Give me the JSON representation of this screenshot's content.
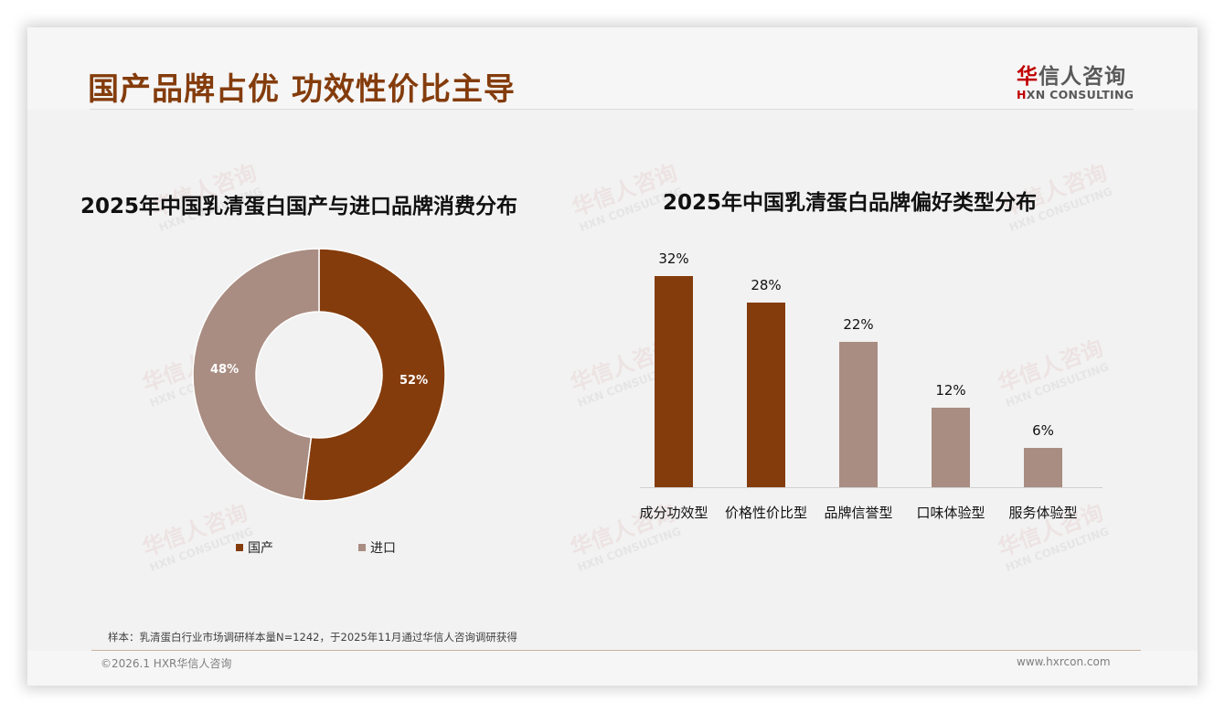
{
  "header": {
    "title": "国产品牌占优 功效性价比主导",
    "logo_cn_accent": "华",
    "logo_cn_rest": "信人咨询",
    "logo_en_accent": "H",
    "logo_en_rest": "XN CONSULTING"
  },
  "watermark": {
    "cn": "华信人咨询",
    "en": "HXN CONSULTING"
  },
  "colors": {
    "domestic": "#843c0c",
    "import": "#a98d82",
    "title": "#843c0c",
    "background": "#f2f2f2"
  },
  "donut_chart": {
    "title": "2025年中国乳清蛋白国产与进口品牌消费分布",
    "labels": [
      "52%",
      "48%"
    ],
    "legend": [
      "国产",
      "进口"
    ]
  },
  "bar_chart": {
    "title": "2025年中国乳清蛋白品牌偏好类型分布",
    "value_labels": [
      "32%",
      "28%",
      "22%",
      "12%",
      "6%"
    ],
    "categories": [
      "成分功效型",
      "价格性价比型",
      "品牌信誉型",
      "口味体验型",
      "服务体验型"
    ]
  },
  "chart_data": [
    {
      "type": "pie",
      "title": "2025年中国乳清蛋白国产与进口品牌消费分布",
      "categories": [
        "国产",
        "进口"
      ],
      "values": [
        52,
        48
      ],
      "unit": "%",
      "hole": 0.5,
      "colors": [
        "#843c0c",
        "#a98d82"
      ],
      "legend_position": "bottom"
    },
    {
      "type": "bar",
      "title": "2025年中国乳清蛋白品牌偏好类型分布",
      "categories": [
        "成分功效型",
        "价格性价比型",
        "品牌信誉型",
        "口味体验型",
        "服务体验型"
      ],
      "values": [
        32,
        28,
        22,
        12,
        6
      ],
      "unit": "%",
      "colors": [
        "#843c0c",
        "#843c0c",
        "#a98d82",
        "#a98d82",
        "#a98d82"
      ],
      "xlabel": "",
      "ylabel": "",
      "ylim": [
        0,
        35
      ],
      "grid": false,
      "data_labels": true
    }
  ],
  "footer": {
    "note": "样本：乳清蛋白行业市场调研样本量N=1242，于2025年11月通过华信人咨询调研获得",
    "copyright": "©2026.1 HXR华信人咨询",
    "website": "www.hxrcon.com"
  }
}
